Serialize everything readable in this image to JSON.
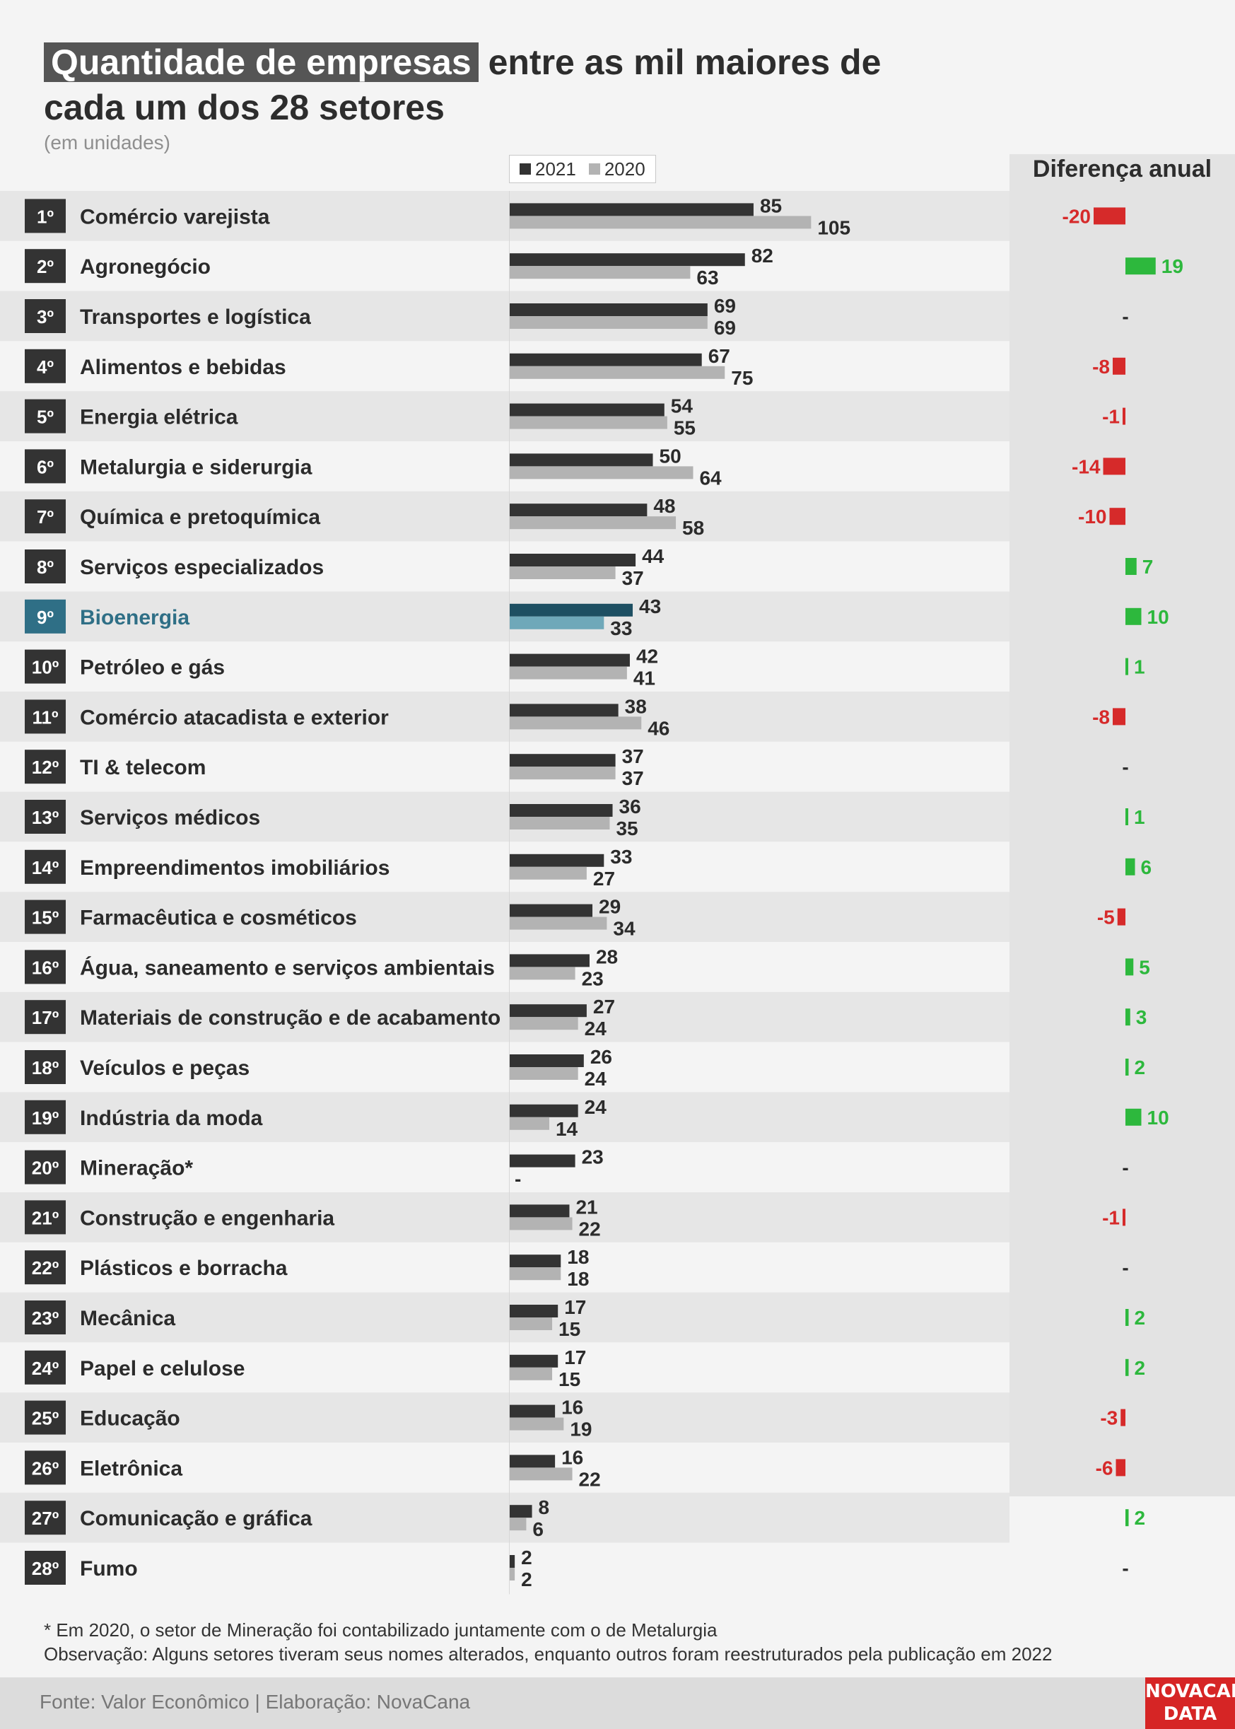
{
  "header": {
    "title_highlight": "Quantidade de empresas",
    "title_rest_line1": "entre as mil maiores de",
    "title_line2": "cada um dos 28 setores",
    "subtitle": "(em unidades)"
  },
  "legend": {
    "y2021": "2021",
    "y2020": "2020"
  },
  "diff_header": "Diferença anual",
  "colors": {
    "bar2021": "#333333",
    "bar2020": "#b3b3b3",
    "highlight2021": "#1e4f62",
    "highlight2020": "#6fa8b9",
    "positive": "#2db83d",
    "negative": "#d62a2a",
    "rank_bg": "#333333",
    "rank_highlight_bg": "#2f6f86"
  },
  "chart_data": {
    "type": "bar",
    "orientation": "horizontal",
    "title": "Quantidade de empresas entre as mil maiores de cada um dos 28 setores",
    "subtitle": "(em unidades)",
    "series": [
      {
        "name": "2021",
        "values": [
          85,
          82,
          69,
          67,
          54,
          50,
          48,
          44,
          43,
          42,
          38,
          37,
          36,
          33,
          29,
          28,
          27,
          26,
          24,
          23,
          21,
          18,
          17,
          17,
          16,
          16,
          8,
          2
        ]
      },
      {
        "name": "2020",
        "values": [
          105,
          63,
          69,
          75,
          55,
          64,
          58,
          37,
          33,
          41,
          46,
          37,
          35,
          27,
          34,
          23,
          24,
          24,
          14,
          null,
          22,
          18,
          15,
          15,
          19,
          22,
          6,
          2
        ]
      }
    ],
    "rows": [
      {
        "rank": "1º",
        "sector": "Comércio varejista",
        "diff": "-20"
      },
      {
        "rank": "2º",
        "sector": "Agronegócio",
        "diff": "19"
      },
      {
        "rank": "3º",
        "sector": "Transportes e logística",
        "diff": "-"
      },
      {
        "rank": "4º",
        "sector": "Alimentos e bebidas",
        "diff": "-8"
      },
      {
        "rank": "5º",
        "sector": "Energia elétrica",
        "diff": "-1"
      },
      {
        "rank": "6º",
        "sector": "Metalurgia e siderurgia",
        "diff": "-14"
      },
      {
        "rank": "7º",
        "sector": "Química e pretoquímica",
        "diff": "-10"
      },
      {
        "rank": "8º",
        "sector": "Serviços especializados",
        "diff": "7"
      },
      {
        "rank": "9º",
        "sector": "Bioenergia",
        "diff": "10",
        "highlight": true
      },
      {
        "rank": "10º",
        "sector": "Petróleo e gás",
        "diff": "1"
      },
      {
        "rank": "11º",
        "sector": "Comércio atacadista e exterior",
        "diff": "-8"
      },
      {
        "rank": "12º",
        "sector": "TI & telecom",
        "diff": "-"
      },
      {
        "rank": "13º",
        "sector": "Serviços médicos",
        "diff": "1"
      },
      {
        "rank": "14º",
        "sector": "Empreendimentos imobiliários",
        "diff": "6"
      },
      {
        "rank": "15º",
        "sector": "Farmacêutica e cosméticos",
        "diff": "-5"
      },
      {
        "rank": "16º",
        "sector": "Água, saneamento e serviços ambientais",
        "diff": "5"
      },
      {
        "rank": "17º",
        "sector": "Materiais de construção e de acabamento",
        "diff": "3"
      },
      {
        "rank": "18º",
        "sector": "Veículos e peças",
        "diff": "2"
      },
      {
        "rank": "19º",
        "sector": "Indústria da moda",
        "diff": "10"
      },
      {
        "rank": "20º",
        "sector": "Mineração*",
        "diff": "-",
        "label2020": "-"
      },
      {
        "rank": "21º",
        "sector": "Construção e engenharia",
        "diff": "-1"
      },
      {
        "rank": "22º",
        "sector": "Plásticos e borracha",
        "diff": "-"
      },
      {
        "rank": "23º",
        "sector": "Mecânica",
        "diff": "2"
      },
      {
        "rank": "24º",
        "sector": "Papel e celulose",
        "diff": "2"
      },
      {
        "rank": "25º",
        "sector": "Educação",
        "diff": "-3"
      },
      {
        "rank": "26º",
        "sector": "Eletrônica",
        "diff": "-6"
      },
      {
        "rank": "27º",
        "sector": "Comunicação e gráfica",
        "diff": "2"
      },
      {
        "rank": "28º",
        "sector": "Fumo",
        "diff": "-"
      }
    ]
  },
  "notes": {
    "line1": "* Em 2020, o setor de Mineração foi contabilizado juntamente com o de Metalurgia",
    "line2": "Observação: Alguns setores tiveram seus nomes alterados, enquanto outros foram reestruturados pela publicação em 2022"
  },
  "footer": {
    "source": "Fonte: Valor Econômico | Elaboração: NovaCana",
    "logo_line1": "NOVACANA",
    "logo_line2": "DATA"
  }
}
